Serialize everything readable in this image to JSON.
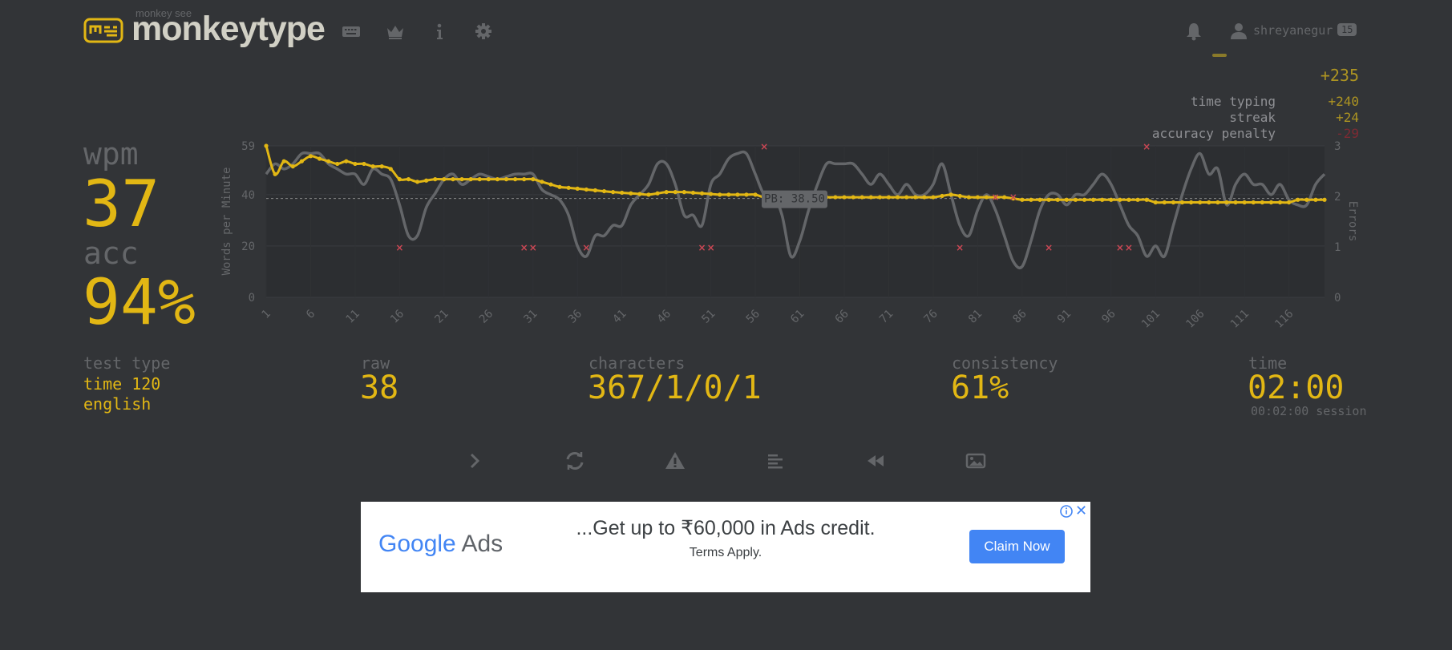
{
  "header": {
    "logo_top": "monkey see",
    "logo_text": "monkeytype",
    "username": "shreyanegur",
    "level": "15"
  },
  "xp": {
    "total": "+235",
    "breakdown": [
      {
        "label": "time typing",
        "value": "+240"
      },
      {
        "label": "streak",
        "value": "+24"
      },
      {
        "label": "accuracy penalty",
        "value": "-29"
      }
    ]
  },
  "stats": {
    "wpm_label": "wpm",
    "wpm": "37",
    "acc_label": "acc",
    "acc": "94%",
    "test_type_label": "test type",
    "test_type_1": "time 120",
    "test_type_2": "english",
    "raw_label": "raw",
    "raw": "38",
    "characters_label": "characters",
    "characters": "367/1/0/1",
    "consistency_label": "consistency",
    "consistency": "61%",
    "time_label": "time",
    "time": "02:00",
    "session": "00:02:00 session"
  },
  "chart_data": {
    "type": "line",
    "ylabel": "Words per Minute",
    "y2label": "Errors",
    "ylim": [
      0,
      59
    ],
    "y2lim": [
      0,
      3
    ],
    "y_ticks": [
      "0",
      "20",
      "40",
      "59"
    ],
    "y2_ticks": [
      "0",
      "1",
      "2",
      "3"
    ],
    "x_ticks": [
      "1",
      "6",
      "11",
      "16",
      "21",
      "26",
      "31",
      "36",
      "41",
      "46",
      "51",
      "56",
      "61",
      "66",
      "71",
      "76",
      "81",
      "86",
      "91",
      "96",
      "101",
      "106",
      "111",
      "116"
    ],
    "pb_label": "PB: 38.50",
    "pb_value": 38.5,
    "colors": {
      "wpm": "#e2b714",
      "raw": "#646669",
      "errors": "#ca4754"
    },
    "raw_keypoints": [
      [
        1,
        48
      ],
      [
        2,
        52
      ],
      [
        3,
        50
      ],
      [
        4,
        52
      ],
      [
        5,
        56
      ],
      [
        7,
        56
      ],
      [
        8,
        52
      ],
      [
        10,
        48
      ],
      [
        11,
        48
      ],
      [
        12,
        44
      ],
      [
        13,
        50
      ],
      [
        15,
        46
      ],
      [
        16,
        36
      ],
      [
        17,
        24
      ],
      [
        18,
        24
      ],
      [
        19,
        35
      ],
      [
        21,
        46
      ],
      [
        22,
        48
      ],
      [
        23,
        44
      ],
      [
        25,
        48
      ],
      [
        27,
        46
      ],
      [
        29,
        48
      ],
      [
        31,
        48
      ],
      [
        32,
        42
      ],
      [
        34,
        38
      ],
      [
        35,
        32
      ],
      [
        36,
        20
      ],
      [
        37,
        16
      ],
      [
        38,
        24
      ],
      [
        39,
        24
      ],
      [
        40,
        28
      ],
      [
        41,
        28
      ],
      [
        42,
        36
      ],
      [
        44,
        44
      ],
      [
        45,
        52
      ],
      [
        46,
        52
      ],
      [
        47,
        44
      ],
      [
        48,
        32
      ],
      [
        49,
        32
      ],
      [
        50,
        28
      ],
      [
        51,
        44
      ],
      [
        52,
        48
      ],
      [
        53,
        54
      ],
      [
        54,
        56
      ],
      [
        55,
        56
      ],
      [
        56,
        48
      ],
      [
        57,
        40
      ],
      [
        58,
        40
      ],
      [
        59,
        32
      ],
      [
        60,
        16
      ],
      [
        61,
        22
      ],
      [
        62,
        34
      ],
      [
        63,
        44
      ],
      [
        64,
        52
      ],
      [
        66,
        52
      ],
      [
        67,
        52
      ],
      [
        68,
        48
      ],
      [
        69,
        44
      ],
      [
        70,
        48
      ],
      [
        71,
        44
      ],
      [
        72,
        40
      ],
      [
        73,
        44
      ],
      [
        74,
        40
      ],
      [
        75,
        40
      ],
      [
        76,
        44
      ],
      [
        77,
        52
      ],
      [
        78,
        40
      ],
      [
        79,
        28
      ],
      [
        80,
        24
      ],
      [
        81,
        34
      ],
      [
        82,
        40
      ],
      [
        83,
        34
      ],
      [
        84,
        24
      ],
      [
        85,
        14
      ],
      [
        86,
        12
      ],
      [
        87,
        22
      ],
      [
        88,
        34
      ],
      [
        89,
        40
      ],
      [
        90,
        40
      ],
      [
        91,
        36
      ],
      [
        92,
        40
      ],
      [
        93,
        40
      ],
      [
        94,
        44
      ],
      [
        95,
        48
      ],
      [
        96,
        44
      ],
      [
        97,
        36
      ],
      [
        98,
        28
      ],
      [
        99,
        24
      ],
      [
        100,
        16
      ],
      [
        101,
        20
      ],
      [
        102,
        16
      ],
      [
        103,
        28
      ],
      [
        104,
        40
      ],
      [
        105,
        50
      ],
      [
        106,
        56
      ],
      [
        107,
        48
      ],
      [
        108,
        50
      ],
      [
        109,
        36
      ],
      [
        110,
        44
      ],
      [
        111,
        48
      ],
      [
        112,
        44
      ],
      [
        113,
        44
      ],
      [
        114,
        40
      ],
      [
        115,
        44
      ],
      [
        116,
        38
      ],
      [
        117,
        36
      ],
      [
        118,
        36
      ],
      [
        119,
        44
      ],
      [
        120,
        48
      ]
    ],
    "wpm_keypoints": [
      [
        1,
        59
      ],
      [
        2,
        48
      ],
      [
        3,
        53
      ],
      [
        4,
        51
      ],
      [
        5,
        53
      ],
      [
        6,
        55
      ],
      [
        7,
        54
      ],
      [
        8,
        53
      ],
      [
        9,
        52
      ],
      [
        10,
        53
      ],
      [
        11,
        52
      ],
      [
        12,
        52
      ],
      [
        13,
        51
      ],
      [
        14,
        51
      ],
      [
        15,
        50
      ],
      [
        16,
        46
      ],
      [
        17,
        46
      ],
      [
        18,
        45
      ],
      [
        20,
        46
      ],
      [
        24,
        46
      ],
      [
        31,
        46
      ],
      [
        34,
        43
      ],
      [
        37,
        42
      ],
      [
        40,
        41
      ],
      [
        44,
        40
      ],
      [
        46,
        41
      ],
      [
        48,
        41
      ],
      [
        52,
        40
      ],
      [
        56,
        40
      ],
      [
        57,
        39
      ],
      [
        58,
        40
      ],
      [
        60,
        40
      ],
      [
        61,
        40
      ],
      [
        62,
        39.5
      ],
      [
        64,
        39
      ],
      [
        69,
        39
      ],
      [
        76,
        39
      ],
      [
        78,
        40
      ],
      [
        80,
        39
      ],
      [
        84,
        39
      ],
      [
        86,
        38
      ],
      [
        100,
        38
      ],
      [
        101,
        37
      ],
      [
        106,
        37
      ],
      [
        109,
        37
      ],
      [
        112,
        37
      ],
      [
        116,
        37
      ],
      [
        117,
        38
      ],
      [
        120,
        38
      ]
    ],
    "error_points": [
      [
        16,
        1
      ],
      [
        30,
        1
      ],
      [
        31,
        1
      ],
      [
        37,
        1
      ],
      [
        50,
        1
      ],
      [
        51,
        1
      ],
      [
        57,
        3
      ],
      [
        79,
        1
      ],
      [
        83,
        2
      ],
      [
        85,
        2
      ],
      [
        89,
        1
      ],
      [
        97,
        1
      ],
      [
        98,
        1
      ],
      [
        100,
        3
      ]
    ]
  },
  "buttons": [
    {
      "name": "next-test-button",
      "icon": "chevron-right-icon"
    },
    {
      "name": "restart-button",
      "icon": "refresh-icon"
    },
    {
      "name": "report-button",
      "icon": "warning-icon"
    },
    {
      "name": "words-history-button",
      "icon": "align-left-icon"
    },
    {
      "name": "replay-button",
      "icon": "rewind-icon"
    },
    {
      "name": "screenshot-button",
      "icon": "image-icon"
    }
  ],
  "ad": {
    "brand_google": "Google",
    "brand_ads": "Ads",
    "headline": "...Get up to ₹60,000 in Ads credit.",
    "subline": "Terms Apply.",
    "cta": "Claim Now"
  }
}
